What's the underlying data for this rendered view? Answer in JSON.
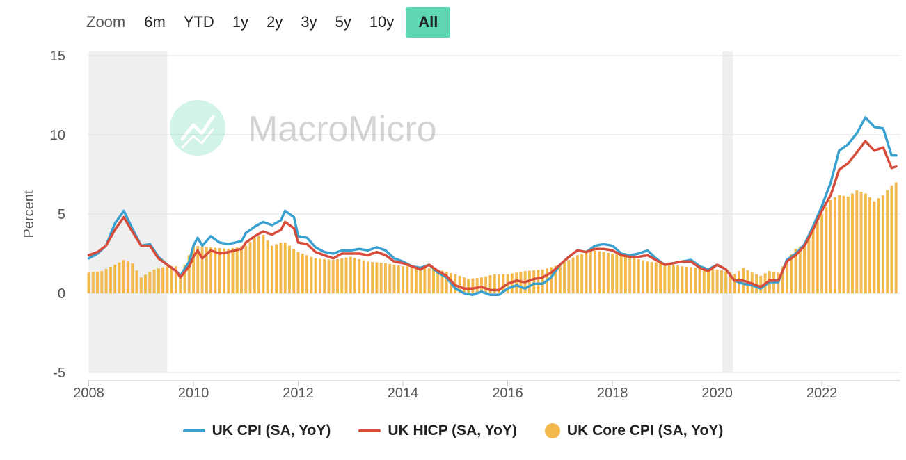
{
  "zoom": {
    "label": "Zoom",
    "buttons": [
      "6m",
      "YTD",
      "1y",
      "2y",
      "3y",
      "5y",
      "10y",
      "All"
    ],
    "active": "All",
    "active_color": "#5ed6b4"
  },
  "watermark": {
    "text": "MacroMicro",
    "icon": "macromicro-logo-icon"
  },
  "chart_data": {
    "type": "line",
    "ylabel": "Percent",
    "xlabel": "",
    "ylim": [
      -5,
      15
    ],
    "yticks": [
      15,
      10,
      5,
      0,
      -5
    ],
    "xlim": [
      2007.98,
      2023.5
    ],
    "xticks": [
      "2008",
      "2010",
      "2012",
      "2014",
      "2016",
      "2018",
      "2020",
      "2022"
    ],
    "recessions": [
      [
        2008.0,
        2009.5
      ],
      [
        2020.1,
        2020.3
      ]
    ],
    "grid": "horizontal",
    "legend_position": "bottom",
    "series": [
      {
        "name": "UK CPI (SA, YoY)",
        "kind": "line",
        "color": "#3aa0d0",
        "points": [
          [
            2008.0,
            2.2
          ],
          [
            2008.17,
            2.5
          ],
          [
            2008.33,
            3.0
          ],
          [
            2008.5,
            4.4
          ],
          [
            2008.67,
            5.2
          ],
          [
            2008.83,
            4.1
          ],
          [
            2009.0,
            3.0
          ],
          [
            2009.17,
            3.1
          ],
          [
            2009.33,
            2.3
          ],
          [
            2009.5,
            1.8
          ],
          [
            2009.67,
            1.4
          ],
          [
            2009.75,
            1.1
          ],
          [
            2009.92,
            2.0
          ],
          [
            2010.0,
            3.0
          ],
          [
            2010.08,
            3.5
          ],
          [
            2010.17,
            3.0
          ],
          [
            2010.33,
            3.6
          ],
          [
            2010.5,
            3.2
          ],
          [
            2010.67,
            3.1
          ],
          [
            2010.92,
            3.3
          ],
          [
            2011.0,
            3.8
          ],
          [
            2011.17,
            4.2
          ],
          [
            2011.33,
            4.5
          ],
          [
            2011.5,
            4.3
          ],
          [
            2011.67,
            4.6
          ],
          [
            2011.75,
            5.2
          ],
          [
            2011.92,
            4.8
          ],
          [
            2012.0,
            3.6
          ],
          [
            2012.17,
            3.5
          ],
          [
            2012.33,
            2.9
          ],
          [
            2012.5,
            2.6
          ],
          [
            2012.67,
            2.5
          ],
          [
            2012.83,
            2.7
          ],
          [
            2013.0,
            2.7
          ],
          [
            2013.17,
            2.8
          ],
          [
            2013.33,
            2.7
          ],
          [
            2013.5,
            2.9
          ],
          [
            2013.67,
            2.7
          ],
          [
            2013.83,
            2.2
          ],
          [
            2014.0,
            2.0
          ],
          [
            2014.17,
            1.7
          ],
          [
            2014.33,
            1.6
          ],
          [
            2014.5,
            1.8
          ],
          [
            2014.67,
            1.3
          ],
          [
            2014.83,
            1.0
          ],
          [
            2015.0,
            0.3
          ],
          [
            2015.17,
            0.0
          ],
          [
            2015.33,
            -0.1
          ],
          [
            2015.5,
            0.1
          ],
          [
            2015.67,
            -0.1
          ],
          [
            2015.83,
            -0.1
          ],
          [
            2016.0,
            0.3
          ],
          [
            2016.17,
            0.5
          ],
          [
            2016.33,
            0.3
          ],
          [
            2016.5,
            0.6
          ],
          [
            2016.67,
            0.6
          ],
          [
            2016.83,
            1.0
          ],
          [
            2017.0,
            1.8
          ],
          [
            2017.17,
            2.3
          ],
          [
            2017.33,
            2.7
          ],
          [
            2017.5,
            2.6
          ],
          [
            2017.67,
            3.0
          ],
          [
            2017.83,
            3.1
          ],
          [
            2018.0,
            3.0
          ],
          [
            2018.17,
            2.5
          ],
          [
            2018.33,
            2.4
          ],
          [
            2018.5,
            2.5
          ],
          [
            2018.67,
            2.7
          ],
          [
            2018.83,
            2.2
          ],
          [
            2019.0,
            1.8
          ],
          [
            2019.17,
            1.9
          ],
          [
            2019.33,
            2.0
          ],
          [
            2019.5,
            2.1
          ],
          [
            2019.67,
            1.7
          ],
          [
            2019.83,
            1.5
          ],
          [
            2020.0,
            1.8
          ],
          [
            2020.17,
            1.5
          ],
          [
            2020.33,
            0.8
          ],
          [
            2020.5,
            0.6
          ],
          [
            2020.67,
            0.5
          ],
          [
            2020.83,
            0.3
          ],
          [
            2021.0,
            0.7
          ],
          [
            2021.17,
            0.7
          ],
          [
            2021.33,
            2.1
          ],
          [
            2021.5,
            2.5
          ],
          [
            2021.67,
            3.1
          ],
          [
            2021.83,
            4.2
          ],
          [
            2022.0,
            5.5
          ],
          [
            2022.17,
            7.0
          ],
          [
            2022.33,
            9.0
          ],
          [
            2022.5,
            9.4
          ],
          [
            2022.67,
            10.1
          ],
          [
            2022.83,
            11.1
          ],
          [
            2023.0,
            10.5
          ],
          [
            2023.17,
            10.4
          ],
          [
            2023.33,
            8.7
          ],
          [
            2023.42,
            8.7
          ]
        ]
      },
      {
        "name": "UK HICP (SA, YoY)",
        "kind": "line",
        "color": "#d64b3a",
        "points": [
          [
            2008.0,
            2.4
          ],
          [
            2008.17,
            2.6
          ],
          [
            2008.33,
            3.0
          ],
          [
            2008.5,
            4.0
          ],
          [
            2008.67,
            4.8
          ],
          [
            2008.83,
            3.9
          ],
          [
            2009.0,
            3.0
          ],
          [
            2009.17,
            3.0
          ],
          [
            2009.33,
            2.2
          ],
          [
            2009.5,
            1.8
          ],
          [
            2009.67,
            1.4
          ],
          [
            2009.75,
            1.0
          ],
          [
            2009.92,
            1.7
          ],
          [
            2010.0,
            2.3
          ],
          [
            2010.08,
            2.7
          ],
          [
            2010.17,
            2.2
          ],
          [
            2010.33,
            2.7
          ],
          [
            2010.5,
            2.5
          ],
          [
            2010.67,
            2.6
          ],
          [
            2010.92,
            2.8
          ],
          [
            2011.0,
            3.2
          ],
          [
            2011.17,
            3.6
          ],
          [
            2011.33,
            3.9
          ],
          [
            2011.5,
            3.7
          ],
          [
            2011.67,
            4.0
          ],
          [
            2011.75,
            4.5
          ],
          [
            2011.92,
            4.1
          ],
          [
            2012.0,
            3.2
          ],
          [
            2012.17,
            3.1
          ],
          [
            2012.33,
            2.6
          ],
          [
            2012.5,
            2.4
          ],
          [
            2012.67,
            2.2
          ],
          [
            2012.83,
            2.5
          ],
          [
            2013.0,
            2.5
          ],
          [
            2013.17,
            2.5
          ],
          [
            2013.33,
            2.4
          ],
          [
            2013.5,
            2.6
          ],
          [
            2013.67,
            2.4
          ],
          [
            2013.83,
            2.0
          ],
          [
            2014.0,
            1.9
          ],
          [
            2014.17,
            1.7
          ],
          [
            2014.33,
            1.5
          ],
          [
            2014.5,
            1.8
          ],
          [
            2014.67,
            1.4
          ],
          [
            2014.83,
            1.1
          ],
          [
            2015.0,
            0.5
          ],
          [
            2015.17,
            0.3
          ],
          [
            2015.33,
            0.3
          ],
          [
            2015.5,
            0.4
          ],
          [
            2015.67,
            0.2
          ],
          [
            2015.83,
            0.2
          ],
          [
            2016.0,
            0.6
          ],
          [
            2016.17,
            0.8
          ],
          [
            2016.33,
            0.7
          ],
          [
            2016.5,
            0.9
          ],
          [
            2016.67,
            1.0
          ],
          [
            2016.83,
            1.3
          ],
          [
            2017.0,
            1.8
          ],
          [
            2017.17,
            2.3
          ],
          [
            2017.33,
            2.7
          ],
          [
            2017.5,
            2.6
          ],
          [
            2017.67,
            2.8
          ],
          [
            2017.83,
            2.8
          ],
          [
            2018.0,
            2.7
          ],
          [
            2018.17,
            2.4
          ],
          [
            2018.33,
            2.3
          ],
          [
            2018.5,
            2.3
          ],
          [
            2018.67,
            2.4
          ],
          [
            2018.83,
            2.1
          ],
          [
            2019.0,
            1.8
          ],
          [
            2019.17,
            1.9
          ],
          [
            2019.33,
            2.0
          ],
          [
            2019.5,
            2.0
          ],
          [
            2019.67,
            1.6
          ],
          [
            2019.83,
            1.4
          ],
          [
            2020.0,
            1.8
          ],
          [
            2020.17,
            1.5
          ],
          [
            2020.33,
            0.8
          ],
          [
            2020.5,
            0.8
          ],
          [
            2020.67,
            0.6
          ],
          [
            2020.83,
            0.4
          ],
          [
            2021.0,
            0.8
          ],
          [
            2021.17,
            0.8
          ],
          [
            2021.33,
            2.0
          ],
          [
            2021.5,
            2.4
          ],
          [
            2021.67,
            3.0
          ],
          [
            2021.83,
            4.0
          ],
          [
            2022.0,
            5.2
          ],
          [
            2022.17,
            6.2
          ],
          [
            2022.33,
            7.8
          ],
          [
            2022.5,
            8.2
          ],
          [
            2022.67,
            8.9
          ],
          [
            2022.83,
            9.6
          ],
          [
            2023.0,
            9.0
          ],
          [
            2023.17,
            9.2
          ],
          [
            2023.33,
            7.9
          ],
          [
            2023.42,
            8.0
          ]
        ]
      },
      {
        "name": "UK Core CPI (SA, YoY)",
        "kind": "bar",
        "color": "#f2b84b",
        "points": [
          [
            2008.0,
            1.3
          ],
          [
            2008.25,
            1.4
          ],
          [
            2008.5,
            1.8
          ],
          [
            2008.67,
            2.1
          ],
          [
            2008.83,
            1.9
          ],
          [
            2009.0,
            1.0
          ],
          [
            2009.25,
            1.5
          ],
          [
            2009.5,
            1.7
          ],
          [
            2009.67,
            1.7
          ],
          [
            2009.75,
            1.2
          ],
          [
            2010.0,
            3.0
          ],
          [
            2010.33,
            2.9
          ],
          [
            2010.67,
            2.8
          ],
          [
            2011.0,
            3.0
          ],
          [
            2011.17,
            3.5
          ],
          [
            2011.33,
            3.7
          ],
          [
            2011.5,
            3.0
          ],
          [
            2011.67,
            3.2
          ],
          [
            2011.75,
            3.2
          ],
          [
            2012.0,
            2.6
          ],
          [
            2012.33,
            2.2
          ],
          [
            2012.67,
            2.1
          ],
          [
            2013.0,
            2.3
          ],
          [
            2013.33,
            2.0
          ],
          [
            2013.67,
            1.9
          ],
          [
            2014.0,
            1.7
          ],
          [
            2014.33,
            1.7
          ],
          [
            2014.67,
            1.5
          ],
          [
            2015.0,
            1.2
          ],
          [
            2015.25,
            0.9
          ],
          [
            2015.5,
            1.0
          ],
          [
            2015.75,
            1.2
          ],
          [
            2016.0,
            1.2
          ],
          [
            2016.33,
            1.4
          ],
          [
            2016.67,
            1.5
          ],
          [
            2017.0,
            1.8
          ],
          [
            2017.33,
            2.4
          ],
          [
            2017.67,
            2.7
          ],
          [
            2018.0,
            2.5
          ],
          [
            2018.33,
            2.3
          ],
          [
            2018.67,
            2.0
          ],
          [
            2019.0,
            1.9
          ],
          [
            2019.33,
            1.7
          ],
          [
            2019.67,
            1.6
          ],
          [
            2020.0,
            1.5
          ],
          [
            2020.17,
            1.4
          ],
          [
            2020.33,
            1.2
          ],
          [
            2020.5,
            1.6
          ],
          [
            2020.67,
            1.3
          ],
          [
            2020.83,
            1.1
          ],
          [
            2021.0,
            1.4
          ],
          [
            2021.17,
            1.3
          ],
          [
            2021.33,
            2.1
          ],
          [
            2021.5,
            2.8
          ],
          [
            2021.67,
            3.1
          ],
          [
            2021.83,
            4.0
          ],
          [
            2022.0,
            5.0
          ],
          [
            2022.17,
            5.9
          ],
          [
            2022.33,
            6.2
          ],
          [
            2022.5,
            6.1
          ],
          [
            2022.67,
            6.5
          ],
          [
            2022.83,
            6.3
          ],
          [
            2023.0,
            5.8
          ],
          [
            2023.17,
            6.2
          ],
          [
            2023.33,
            6.8
          ],
          [
            2023.42,
            7.0
          ]
        ]
      }
    ]
  }
}
